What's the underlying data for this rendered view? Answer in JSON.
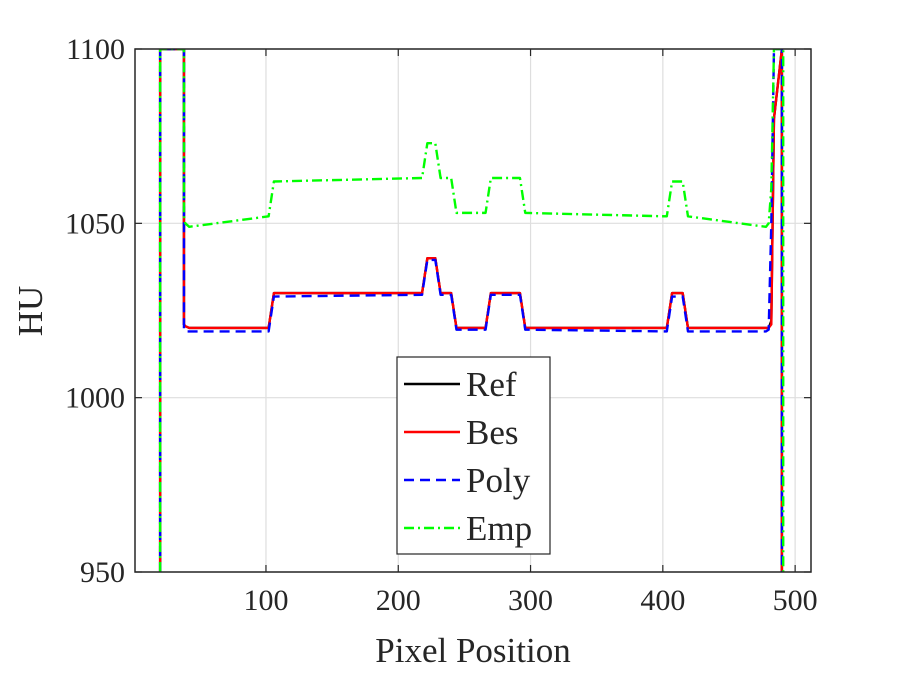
{
  "chart_data": {
    "type": "line",
    "title": "",
    "xlabel": "Pixel Position",
    "ylabel": "HU",
    "xlim": [
      1,
      512
    ],
    "ylim": [
      950,
      1100
    ],
    "xticks": [
      100,
      200,
      300,
      400,
      500
    ],
    "yticks": [
      950,
      1000,
      1050,
      1100
    ],
    "xtick_labels": [
      "100",
      "200",
      "300",
      "400",
      "500"
    ],
    "ytick_labels": [
      "950",
      "1000",
      "1050",
      "1100"
    ],
    "grid": true,
    "legend_position": "bottom-center",
    "series": [
      {
        "name": "Ref",
        "color": "#000000",
        "dash": "solid",
        "x": [
          20,
          20,
          38,
          38,
          39,
          42,
          102,
          104,
          106,
          218,
          220,
          222,
          228,
          230,
          232,
          240,
          242,
          244,
          266,
          268,
          270,
          292,
          294,
          296,
          403,
          405,
          407,
          415,
          417,
          419,
          480,
          482,
          484,
          490,
          490
        ],
        "y": [
          950,
          1100,
          1100,
          1021,
          1020.5,
          1020,
          1020,
          1025,
          1030,
          1030,
          1035,
          1040,
          1040,
          1035,
          1030,
          1030,
          1025,
          1020,
          1020,
          1025,
          1030,
          1030,
          1025,
          1020,
          1020,
          1025,
          1030,
          1030,
          1025,
          1020,
          1020,
          1022,
          1080,
          1100,
          950
        ]
      },
      {
        "name": "Bes",
        "color": "#ff0000",
        "dash": "solid",
        "x": [
          20,
          20,
          38,
          38,
          39,
          42,
          102,
          104,
          106,
          218,
          220,
          222,
          228,
          230,
          232,
          240,
          242,
          244,
          266,
          268,
          270,
          292,
          294,
          296,
          403,
          405,
          407,
          415,
          417,
          419,
          480,
          482,
          484,
          490,
          490
        ],
        "y": [
          950,
          1100,
          1100,
          1021,
          1020.5,
          1020,
          1020,
          1025,
          1030,
          1030,
          1035,
          1040,
          1040,
          1035,
          1030,
          1030,
          1025,
          1020,
          1020,
          1025,
          1030,
          1030,
          1025,
          1020,
          1020,
          1025,
          1030,
          1030,
          1025,
          1020,
          1020,
          1021,
          1080,
          1100,
          950
        ]
      },
      {
        "name": "Poly",
        "color": "#0000ff",
        "dash": "dashed",
        "x": [
          20,
          20,
          38,
          38,
          39,
          42,
          102,
          104,
          106,
          218,
          220,
          222,
          228,
          230,
          232,
          240,
          242,
          244,
          266,
          268,
          270,
          292,
          294,
          296,
          403,
          405,
          407,
          415,
          417,
          419,
          478,
          480,
          482,
          484,
          490,
          490
        ],
        "y": [
          950,
          1100,
          1100,
          1019.5,
          1019,
          1019,
          1019,
          1024,
          1029,
          1029.5,
          1034.5,
          1039.5,
          1039.5,
          1034.5,
          1029.5,
          1029.5,
          1024.5,
          1019.5,
          1019.5,
          1024.5,
          1029.5,
          1029.5,
          1024.5,
          1019.5,
          1019,
          1024,
          1029,
          1029,
          1024,
          1019,
          1019,
          1019.5,
          1050,
          1100,
          1100,
          950
        ]
      },
      {
        "name": "Emp",
        "color": "#00ff00",
        "dash": "dashdot",
        "x": [
          20,
          20,
          38,
          38,
          39,
          42,
          102,
          104,
          106,
          218,
          220,
          222,
          228,
          230,
          232,
          240,
          242,
          244,
          266,
          268,
          270,
          292,
          294,
          296,
          403,
          405,
          407,
          415,
          417,
          419,
          478,
          480,
          482,
          484,
          491,
          491
        ],
        "y": [
          950,
          1100,
          1100,
          1052,
          1050,
          1049,
          1052,
          1057,
          1062,
          1063,
          1068,
          1073,
          1073,
          1068,
          1063,
          1063,
          1058,
          1053,
          1053,
          1058,
          1063,
          1063,
          1058,
          1053,
          1052,
          1057,
          1062,
          1062,
          1057,
          1052,
          1049,
          1050,
          1060,
          1100,
          1100,
          950
        ]
      }
    ]
  }
}
